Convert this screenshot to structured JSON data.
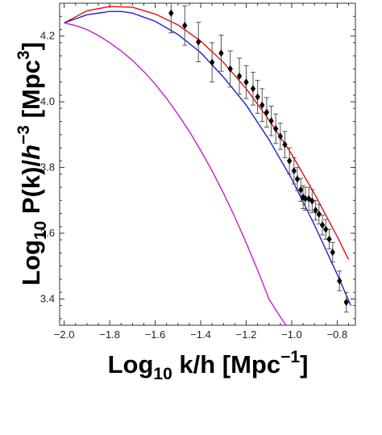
{
  "chart_data": {
    "type": "scatter",
    "xlabel": {
      "main": "Log",
      "sub": "10",
      "rest": " k/h [Mpc",
      "sup": "−1",
      "end": "]"
    },
    "ylabel": {
      "main": "Log",
      "sub": "10",
      "mid1": " P(k)/",
      "h": "h",
      "sup1": "−3",
      "mid2": " [Mpc",
      "sup2": "3",
      "end": "]"
    },
    "xlim": [
      -2.02,
      -0.72
    ],
    "ylim": [
      3.32,
      4.3
    ],
    "x_ticks": [
      -2.0,
      -1.8,
      -1.6,
      -1.4,
      -1.2,
      -1.0,
      -0.8
    ],
    "x_tick_labels": [
      "−2.0",
      "−1.8",
      "−1.6",
      "−1.4",
      "−1.2",
      "−1.0",
      "−0.8"
    ],
    "y_ticks": [
      3.4,
      3.6,
      3.8,
      4.0,
      4.2
    ],
    "y_tick_labels": [
      "3.4",
      "3.6",
      "3.8",
      "4.0",
      "4.2"
    ],
    "colors": {
      "red": "#e01010",
      "blue": "#2020c8",
      "magenta": "#c020c8",
      "points": "#000000",
      "errorbars": "#555555"
    },
    "series": [
      {
        "style": "line",
        "color": "#e01010",
        "x": [
          -2.0,
          -1.9,
          -1.8,
          -1.7,
          -1.6,
          -1.5,
          -1.4,
          -1.3,
          -1.2,
          -1.1,
          -1.0,
          -0.9,
          -0.8,
          -0.75
        ],
        "y": [
          4.24,
          4.277,
          4.29,
          4.288,
          4.267,
          4.234,
          4.185,
          4.12,
          4.04,
          3.945,
          3.84,
          3.72,
          3.59,
          3.52
        ]
      },
      {
        "style": "line",
        "color": "#2020c8",
        "x": [
          -2.0,
          -1.9,
          -1.8,
          -1.75,
          -1.7,
          -1.6,
          -1.5,
          -1.4,
          -1.3,
          -1.2,
          -1.1,
          -1.0,
          -0.9,
          -0.8,
          -0.74
        ],
        "y": [
          4.24,
          4.265,
          4.275,
          4.275,
          4.27,
          4.245,
          4.205,
          4.15,
          4.075,
          3.99,
          3.885,
          3.765,
          3.625,
          3.475,
          3.38
        ]
      },
      {
        "style": "line",
        "color": "#c020c8",
        "x": [
          -2.0,
          -1.95,
          -1.9,
          -1.85,
          -1.8,
          -1.75,
          -1.7,
          -1.65,
          -1.6,
          -1.55,
          -1.5,
          -1.45,
          -1.4,
          -1.35,
          -1.3,
          -1.25,
          -1.2,
          -1.15,
          -1.1,
          -1.05,
          -1.025
        ],
        "y": [
          4.24,
          4.232,
          4.22,
          4.202,
          4.18,
          4.155,
          4.126,
          4.092,
          4.054,
          4.01,
          3.962,
          3.91,
          3.852,
          3.79,
          3.722,
          3.649,
          3.571,
          3.488,
          3.4,
          3.345,
          3.32
        ]
      },
      {
        "style": "points",
        "color": "#000000",
        "x": [
          -1.53,
          -1.47,
          -1.41,
          -1.35,
          -1.31,
          -1.27,
          -1.23,
          -1.2,
          -1.17,
          -1.15,
          -1.13,
          -1.11,
          -1.09,
          -1.07,
          -1.05,
          -1.03,
          -1.01,
          -0.99,
          -0.975,
          -0.96,
          -0.95,
          -0.94,
          -0.925,
          -0.91,
          -0.895,
          -0.88,
          -0.865,
          -0.85,
          -0.835,
          -0.82,
          -0.79,
          -0.76
        ],
        "y": [
          4.27,
          4.232,
          4.182,
          4.12,
          4.148,
          4.1,
          4.078,
          4.06,
          4.04,
          4.015,
          3.99,
          3.968,
          3.942,
          3.918,
          3.895,
          3.87,
          3.82,
          3.79,
          3.765,
          3.732,
          3.71,
          3.705,
          3.705,
          3.698,
          3.67,
          3.658,
          3.625,
          3.612,
          3.582,
          3.542,
          3.455,
          3.39
        ],
        "err": [
          0.06,
          0.06,
          0.06,
          0.06,
          0.055,
          0.055,
          0.055,
          0.05,
          0.05,
          0.05,
          0.05,
          0.045,
          0.045,
          0.045,
          0.04,
          0.04,
          0.04,
          0.04,
          0.035,
          0.035,
          0.035,
          0.035,
          0.035,
          0.035,
          0.03,
          0.03,
          0.03,
          0.03,
          0.03,
          0.03,
          0.03,
          0.03
        ]
      }
    ]
  }
}
